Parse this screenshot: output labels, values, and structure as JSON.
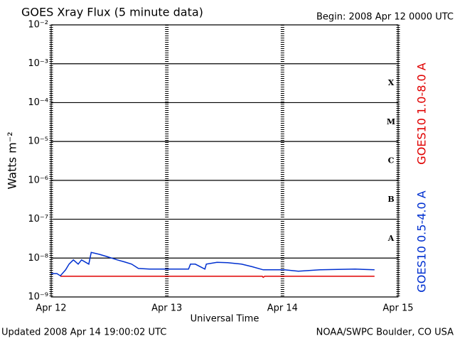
{
  "chart_data": {
    "type": "line",
    "title": "GOES Xray Flux (5 minute data)",
    "begin": "Begin:  2008 Apr 12 0000 UTC",
    "ylabel": "Watts m⁻²",
    "xlabel": "Universal Time",
    "updated": "Updated 2008 Apr 14 19:00:02 UTC",
    "source": "NOAA/SWPC Boulder, CO USA",
    "log_y": true,
    "grid": true,
    "ylim": [
      1e-09,
      0.01
    ],
    "yticks": [
      {
        "value": 1e-09,
        "label": "10⁻⁹"
      },
      {
        "value": 1e-08,
        "label": "10⁻⁸"
      },
      {
        "value": 1e-07,
        "label": "10⁻⁷"
      },
      {
        "value": 1e-06,
        "label": "10⁻⁶"
      },
      {
        "value": 1e-05,
        "label": "10⁻⁵"
      },
      {
        "value": 0.0001,
        "label": "10⁻⁴"
      },
      {
        "value": 0.001,
        "label": "10⁻³"
      },
      {
        "value": 0.01,
        "label": "10⁻²"
      }
    ],
    "xlim": [
      0,
      72
    ],
    "xticks": [
      {
        "value": 0,
        "label": "Apr 12"
      },
      {
        "value": 24,
        "label": "Apr 13"
      },
      {
        "value": 48,
        "label": "Apr 14"
      },
      {
        "value": 72,
        "label": "Apr 15"
      }
    ],
    "flare_classes": [
      "X",
      "M",
      "C",
      "B",
      "A"
    ],
    "series": [
      {
        "name": "GOES10 1.0-8.0 A",
        "color": "#e00000",
        "x": [
          1.9,
          43.8,
          44.0,
          44.3,
          67.1
        ],
        "values": [
          3.4e-09,
          3.4e-09,
          3.2e-09,
          3.4e-09,
          3.4e-09
        ]
      },
      {
        "name": "GOES10 0.5-4.0 A",
        "color": "#0030d0",
        "x": [
          0,
          1.2,
          1.9,
          3.0,
          3.7,
          4.6,
          5.6,
          6.3,
          7.8,
          8.3,
          10.0,
          11.5,
          13.7,
          15.2,
          16.7,
          18.1,
          20.4,
          28.5,
          28.9,
          29.9,
          31.9,
          32.2,
          34.4,
          36.6,
          39.5,
          41.7,
          44.0,
          48.4,
          51.3,
          55.8,
          63.1,
          67.1
        ],
        "values": [
          4e-09,
          4e-09,
          3.5e-09,
          5e-09,
          7e-09,
          9e-09,
          7e-09,
          9e-09,
          7e-09,
          1.4e-08,
          1.25e-08,
          1.1e-08,
          9e-09,
          8e-09,
          7e-09,
          5.4e-09,
          5.2e-09,
          5.2e-09,
          7e-09,
          7e-09,
          5.2e-09,
          7e-09,
          7.8e-09,
          7.6e-09,
          7e-09,
          6e-09,
          5e-09,
          5e-09,
          4.6e-09,
          5e-09,
          5.2e-09,
          5e-09
        ]
      }
    ]
  }
}
